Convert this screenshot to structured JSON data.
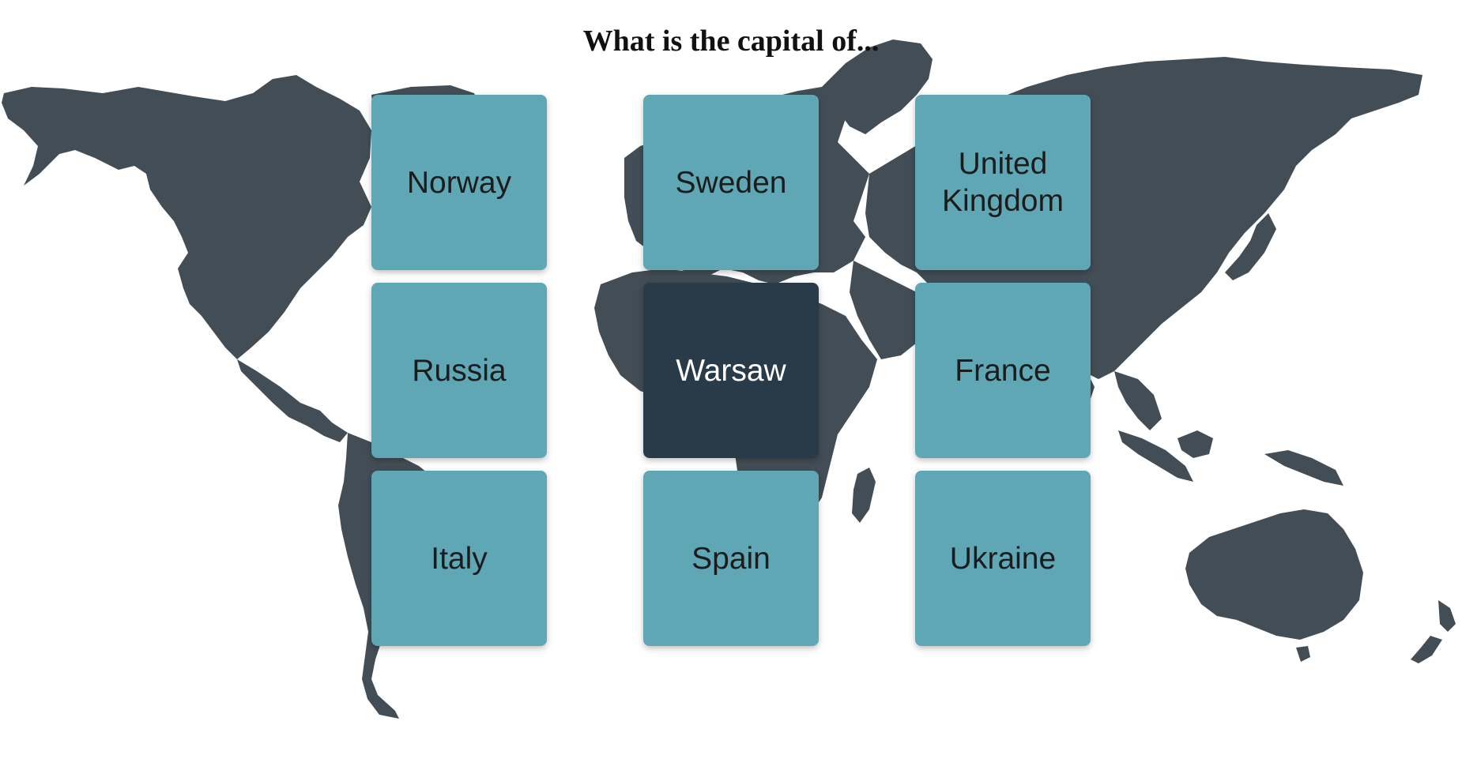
{
  "question": {
    "title": "What is the capital of..."
  },
  "cards": [
    {
      "label": "Norway",
      "selected": false
    },
    {
      "label": "Sweden",
      "selected": false
    },
    {
      "label": "United Kingdom",
      "selected": false
    },
    {
      "label": "Russia",
      "selected": false
    },
    {
      "label": "Warsaw",
      "selected": true
    },
    {
      "label": "France",
      "selected": false
    },
    {
      "label": "Italy",
      "selected": false
    },
    {
      "label": "Spain",
      "selected": false
    },
    {
      "label": "Ukraine",
      "selected": false
    }
  ],
  "colors": {
    "map": "#424d55",
    "card": "#5fa7b4",
    "card_selected": "#293b48",
    "card_text": "#1c1c1c",
    "card_selected_text": "#ffffff"
  }
}
